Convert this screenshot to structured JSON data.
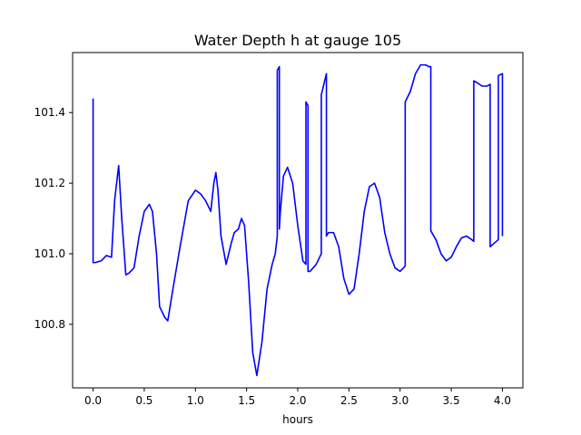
{
  "chart_data": {
    "type": "line",
    "title": "Water Depth h at gauge 105",
    "xlabel": "hours",
    "ylabel": "",
    "xlim": [
      -0.2,
      4.2
    ],
    "ylim": [
      100.62,
      101.57
    ],
    "xticks": [
      0.0,
      0.5,
      1.0,
      1.5,
      2.0,
      2.5,
      3.0,
      3.5,
      4.0
    ],
    "xtick_labels": [
      "0.0",
      "0.5",
      "1.0",
      "1.5",
      "2.0",
      "2.5",
      "3.0",
      "3.5",
      "4.0"
    ],
    "yticks": [
      100.8,
      101.0,
      101.2,
      101.4
    ],
    "ytick_labels": [
      "100.8",
      "101.0",
      "101.2",
      "101.4"
    ],
    "grid": false,
    "series": [
      {
        "color": "#0000ff",
        "x": [
          0.0,
          0.0,
          0.02,
          0.08,
          0.13,
          0.18,
          0.21,
          0.25,
          0.28,
          0.32,
          0.35,
          0.4,
          0.45,
          0.5,
          0.55,
          0.58,
          0.62,
          0.65,
          0.7,
          0.73,
          0.78,
          0.85,
          0.93,
          1.0,
          1.05,
          1.1,
          1.15,
          1.18,
          1.2,
          1.22,
          1.25,
          1.3,
          1.35,
          1.38,
          1.42,
          1.45,
          1.48,
          1.52,
          1.56,
          1.6,
          1.65,
          1.7,
          1.75,
          1.78,
          1.8,
          1.8,
          1.82,
          1.82,
          1.83,
          1.86,
          1.9,
          1.95,
          2.0,
          2.05,
          2.08,
          2.08,
          2.1,
          2.1,
          2.12,
          2.18,
          2.23,
          2.23,
          2.28,
          2.28,
          2.3,
          2.35,
          2.4,
          2.45,
          2.5,
          2.55,
          2.6,
          2.65,
          2.7,
          2.75,
          2.8,
          2.85,
          2.9,
          2.95,
          3.0,
          3.05,
          3.05,
          3.1,
          3.15,
          3.2,
          3.25,
          3.28,
          3.3,
          3.3,
          3.35,
          3.4,
          3.45,
          3.5,
          3.55,
          3.6,
          3.65,
          3.7,
          3.72,
          3.72,
          3.75,
          3.8,
          3.85,
          3.88,
          3.88,
          3.92,
          3.96,
          3.96,
          4.0,
          4.0
        ],
        "y": [
          101.44,
          100.975,
          100.975,
          100.98,
          100.995,
          100.99,
          101.15,
          101.25,
          101.1,
          100.94,
          100.945,
          100.96,
          101.05,
          101.12,
          101.14,
          101.12,
          101.0,
          100.85,
          100.82,
          100.81,
          100.9,
          101.02,
          101.15,
          101.18,
          101.17,
          101.15,
          101.12,
          101.2,
          101.23,
          101.18,
          101.05,
          100.97,
          101.03,
          101.06,
          101.07,
          101.1,
          101.08,
          100.92,
          100.72,
          100.655,
          100.75,
          100.9,
          100.97,
          101.0,
          101.05,
          101.52,
          101.53,
          101.07,
          101.12,
          101.22,
          101.245,
          101.2,
          101.08,
          100.98,
          100.97,
          101.43,
          101.42,
          100.95,
          100.95,
          100.97,
          101.0,
          101.45,
          101.51,
          101.05,
          101.06,
          101.06,
          101.02,
          100.93,
          100.885,
          100.9,
          101.0,
          101.12,
          101.19,
          101.2,
          101.16,
          101.06,
          101.0,
          100.96,
          100.95,
          100.965,
          101.43,
          101.46,
          101.51,
          101.535,
          101.535,
          101.53,
          101.53,
          101.065,
          101.04,
          101.0,
          100.98,
          100.99,
          101.02,
          101.045,
          101.05,
          101.04,
          101.035,
          101.49,
          101.485,
          101.475,
          101.475,
          101.48,
          101.02,
          101.03,
          101.04,
          101.505,
          101.51,
          101.05
        ]
      }
    ]
  }
}
